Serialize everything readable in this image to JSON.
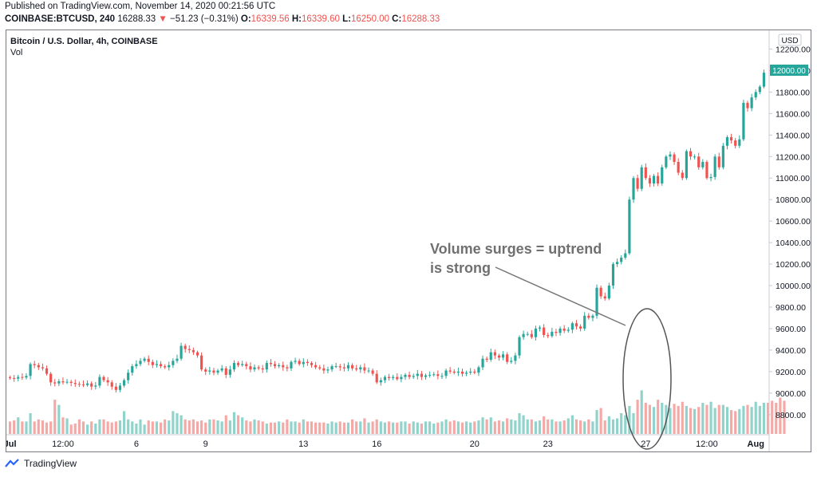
{
  "header": {
    "published": "Published on TradingView.com, November 14, 2020 00:21:56 UTC",
    "symbol": "COINBASE:BTCUSD, 240",
    "last": "16288.33",
    "change_arrow": "▼",
    "change": "−51.23 (−0.31%)",
    "o_label": "O:",
    "o_value": "16339.56",
    "h_label": "H:",
    "h_value": "16339.60",
    "l_label": "L:",
    "l_value": "16250.00",
    "c_label": "C:",
    "c_value": "16288.33"
  },
  "legend": {
    "title": "Bitcoin / U.S. Dollar, 4h, COINBASE",
    "vol": "Vol"
  },
  "currency": "USD",
  "current_price_label": "12000.00",
  "annotation": {
    "line1": "Volume surges = uptrend",
    "line2": "is strong"
  },
  "footer": {
    "brand": "TradingView"
  },
  "colors": {
    "up": "#26a69a",
    "down": "#ef5350",
    "vol_up": "#8fd3cb",
    "vol_down": "#f4a9a7",
    "text": "#131722",
    "annotation": "#707070"
  },
  "chart_data": {
    "type": "candlestick",
    "title": "Bitcoin / U.S. Dollar, 4h, COINBASE",
    "ylim": [
      8650,
      12300
    ],
    "y_ticks": [
      "12200.00",
      "12000.00",
      "11800.00",
      "11600.00",
      "11400.00",
      "11200.00",
      "11000.00",
      "10800.00",
      "10600.00",
      "10400.00",
      "10200.00",
      "10000.00",
      "9800.00",
      "9600.00",
      "9400.00",
      "9200.00",
      "9000.00",
      "8800.00"
    ],
    "x_ticks": [
      "Jul",
      "12:00",
      "6",
      "9",
      "13",
      "16",
      "20",
      "23",
      "27",
      "12:00",
      "Aug"
    ],
    "closes": [
      9140,
      9135,
      9150,
      9145,
      9160,
      9270,
      9260,
      9240,
      9230,
      9180,
      9100,
      9090,
      9110,
      9100,
      9105,
      9095,
      9085,
      9080,
      9075,
      9090,
      9060,
      9070,
      9150,
      9120,
      9100,
      9060,
      9030,
      9070,
      9120,
      9190,
      9250,
      9270,
      9300,
      9320,
      9290,
      9260,
      9270,
      9250,
      9240,
      9260,
      9300,
      9320,
      9440,
      9410,
      9400,
      9380,
      9350,
      9220,
      9200,
      9210,
      9190,
      9210,
      9230,
      9170,
      9220,
      9280,
      9260,
      9270,
      9250,
      9220,
      9240,
      9230,
      9220,
      9280,
      9270,
      9250,
      9260,
      9240,
      9230,
      9290,
      9300,
      9270,
      9290,
      9280,
      9260,
      9240,
      9230,
      9210,
      9220,
      9250,
      9250,
      9240,
      9230,
      9260,
      9230,
      9220,
      9240,
      9210,
      9210,
      9180,
      9100,
      9120,
      9150,
      9140,
      9150,
      9130,
      9150,
      9170,
      9150,
      9160,
      9180,
      9150,
      9165,
      9170,
      9175,
      9160,
      9160,
      9210,
      9200,
      9190,
      9200,
      9180,
      9190,
      9200,
      9190,
      9240,
      9320,
      9310,
      9380,
      9350,
      9330,
      9360,
      9290,
      9300,
      9350,
      9520,
      9550,
      9550,
      9520,
      9600,
      9610,
      9540,
      9530,
      9570,
      9560,
      9600,
      9580,
      9590,
      9650,
      9620,
      9600,
      9720,
      9700,
      9720,
      9980,
      9900,
      9880,
      10000,
      10200,
      10220,
      10260,
      10300,
      10800,
      11000,
      10900,
      11100,
      11000,
      10950,
      11020,
      10950,
      11100,
      11200,
      11220,
      11150,
      11050,
      11000,
      11250,
      11200,
      11200,
      11100,
      11150,
      11000,
      11010,
      11200,
      11100,
      11300,
      11380,
      11350,
      11300,
      11360,
      11700,
      11650,
      11750,
      11800,
      11850,
      11980
    ],
    "volumes": [
      0.12,
      0.13,
      0.16,
      0.12,
      0.12,
      0.2,
      0.12,
      0.14,
      0.13,
      0.11,
      0.12,
      0.33,
      0.28,
      0.16,
      0.15,
      0.09,
      0.1,
      0.14,
      0.12,
      0.09,
      0.12,
      0.1,
      0.14,
      0.14,
      0.12,
      0.11,
      0.12,
      0.13,
      0.22,
      0.14,
      0.12,
      0.1,
      0.14,
      0.09,
      0.13,
      0.12,
      0.12,
      0.11,
      0.14,
      0.13,
      0.22,
      0.2,
      0.18,
      0.14,
      0.13,
      0.14,
      0.12,
      0.13,
      0.11,
      0.14,
      0.14,
      0.13,
      0.12,
      0.18,
      0.13,
      0.21,
      0.18,
      0.16,
      0.13,
      0.12,
      0.14,
      0.13,
      0.12,
      0.1,
      0.11,
      0.11,
      0.12,
      0.11,
      0.14,
      0.12,
      0.12,
      0.11,
      0.14,
      0.12,
      0.12,
      0.11,
      0.11,
      0.11,
      0.1,
      0.12,
      0.11,
      0.12,
      0.11,
      0.11,
      0.14,
      0.12,
      0.12,
      0.15,
      0.11,
      0.12,
      0.14,
      0.12,
      0.11,
      0.12,
      0.11,
      0.11,
      0.12,
      0.12,
      0.1,
      0.12,
      0.11,
      0.1,
      0.12,
      0.12,
      0.1,
      0.11,
      0.12,
      0.14,
      0.12,
      0.13,
      0.12,
      0.11,
      0.12,
      0.11,
      0.12,
      0.13,
      0.16,
      0.14,
      0.16,
      0.12,
      0.13,
      0.12,
      0.15,
      0.14,
      0.13,
      0.2,
      0.18,
      0.14,
      0.14,
      0.12,
      0.13,
      0.17,
      0.14,
      0.14,
      0.12,
      0.12,
      0.13,
      0.15,
      0.18,
      0.14,
      0.13,
      0.12,
      0.14,
      0.12,
      0.23,
      0.25,
      0.13,
      0.17,
      0.14,
      0.15,
      0.2,
      0.18,
      0.27,
      0.2,
      0.33,
      0.42,
      0.3,
      0.28,
      0.26,
      0.33,
      0.3,
      0.28,
      0.25,
      0.29,
      0.27,
      0.31,
      0.27,
      0.25,
      0.24,
      0.26,
      0.3,
      0.28,
      0.31,
      0.25,
      0.28,
      0.28,
      0.26,
      0.23,
      0.22,
      0.24,
      0.27,
      0.28,
      0.26,
      0.31,
      0.27,
      0.3,
      0.3,
      0.32,
      0.3,
      0.35,
      0.32
    ]
  }
}
